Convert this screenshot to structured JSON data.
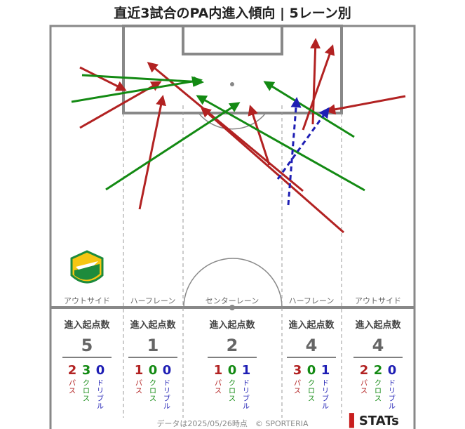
{
  "title": "直近3試合のPA内進入傾向 | 5レーン別",
  "lanes": [
    {
      "name": "アウトサイド",
      "header": "進入起点数",
      "total": "5",
      "pass": "2",
      "cross": "3",
      "dribble": "0"
    },
    {
      "name": "ハーフレーン",
      "header": "進入起点数",
      "total": "1",
      "pass": "1",
      "cross": "0",
      "dribble": "0"
    },
    {
      "name": "センターレーン",
      "header": "進入起点数",
      "total": "2",
      "pass": "1",
      "cross": "0",
      "dribble": "1"
    },
    {
      "name": "ハーフレーン",
      "header": "進入起点数",
      "total": "4",
      "pass": "3",
      "cross": "0",
      "dribble": "1"
    },
    {
      "name": "アウトサイド",
      "header": "進入起点数",
      "total": "4",
      "pass": "2",
      "cross": "2",
      "dribble": "0"
    }
  ],
  "labels": {
    "pass": "パス",
    "cross": "クロス",
    "dribble": "ドリブル"
  },
  "colors": {
    "pass": "#b22222",
    "cross": "#138a13",
    "dribble": "#1e1eb4",
    "pitch_line": "#888888"
  },
  "footer": "データは2025/05/26時点　© SPORTERIA",
  "brand": "STATs",
  "chart_data": {
    "type": "flow-arrows",
    "lanes": [
      "アウトサイド",
      "ハーフレーン",
      "センターレーン",
      "ハーフレーン",
      "アウトサイド"
    ],
    "series": [
      {
        "name": "パス",
        "values": [
          2,
          1,
          1,
          3,
          2
        ]
      },
      {
        "name": "クロス",
        "values": [
          3,
          0,
          0,
          0,
          2
        ]
      },
      {
        "name": "ドリブル",
        "values": [
          0,
          0,
          1,
          1,
          0
        ]
      }
    ]
  }
}
